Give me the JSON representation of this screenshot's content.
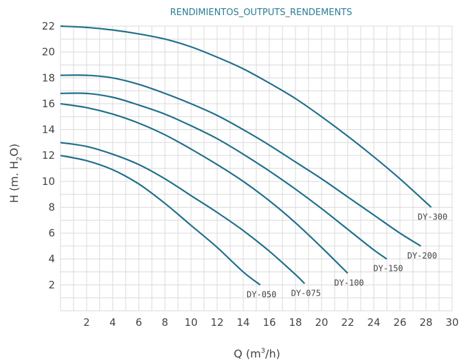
{
  "chart_data": {
    "type": "line",
    "title": "RENDIMIENTOS_OUTPUTS_RENDEMENTS",
    "xlabel": {
      "main": "Q (m",
      "sup": "3",
      "rest": "/h)"
    },
    "ylabel": {
      "main": "H (m. H",
      "sub": "2",
      "rest": "O)"
    },
    "xlim": [
      0,
      30
    ],
    "ylim": [
      0,
      22
    ],
    "xticks": [
      2,
      4,
      6,
      8,
      10,
      12,
      14,
      16,
      18,
      20,
      22,
      24,
      26,
      28,
      30
    ],
    "yticks": [
      2,
      4,
      6,
      8,
      10,
      12,
      14,
      16,
      18,
      20,
      22
    ],
    "grid": true,
    "line_color": "#1f6f8b",
    "grid_color": "#d9d9d9",
    "series": [
      {
        "name": "DY-050",
        "x": [
          0,
          2,
          4,
          6,
          8,
          10,
          12,
          14,
          15.3
        ],
        "y": [
          12,
          11.6,
          10.9,
          9.8,
          8.3,
          6.6,
          4.9,
          3.0,
          2.0
        ]
      },
      {
        "name": "DY-075",
        "x": [
          0,
          2,
          4,
          6,
          8,
          10,
          12,
          14,
          16,
          18,
          18.7
        ],
        "y": [
          13,
          12.7,
          12.1,
          11.3,
          10.2,
          8.9,
          7.6,
          6.2,
          4.6,
          2.8,
          2.1
        ]
      },
      {
        "name": "DY-100",
        "x": [
          0,
          2,
          4,
          6,
          8,
          10,
          12,
          14,
          16,
          18,
          20,
          22
        ],
        "y": [
          16,
          15.7,
          15.2,
          14.5,
          13.6,
          12.5,
          11.3,
          10.0,
          8.5,
          6.8,
          4.9,
          2.9
        ]
      },
      {
        "name": "DY-150",
        "x": [
          0,
          2,
          4,
          6,
          8,
          10,
          12,
          14,
          16,
          18,
          20,
          22,
          24,
          25
        ],
        "y": [
          16.8,
          16.8,
          16.5,
          15.9,
          15.2,
          14.3,
          13.3,
          12.1,
          10.8,
          9.4,
          7.9,
          6.3,
          4.7,
          4.0
        ]
      },
      {
        "name": "DY-200",
        "x": [
          0,
          2,
          4,
          6,
          8,
          10,
          12,
          14,
          16,
          18,
          20,
          22,
          24,
          26,
          27.6
        ],
        "y": [
          18.2,
          18.2,
          18.0,
          17.5,
          16.8,
          16.0,
          15.1,
          14.0,
          12.8,
          11.5,
          10.2,
          8.8,
          7.4,
          6.0,
          5.0
        ]
      },
      {
        "name": "DY-300",
        "x": [
          0,
          2,
          4,
          6,
          8,
          10,
          12,
          14,
          16,
          18,
          20,
          22,
          24,
          26,
          28.4
        ],
        "y": [
          22,
          21.9,
          21.7,
          21.4,
          21.0,
          20.4,
          19.6,
          18.7,
          17.6,
          16.4,
          15.0,
          13.5,
          11.9,
          10.2,
          8.0
        ]
      }
    ]
  }
}
